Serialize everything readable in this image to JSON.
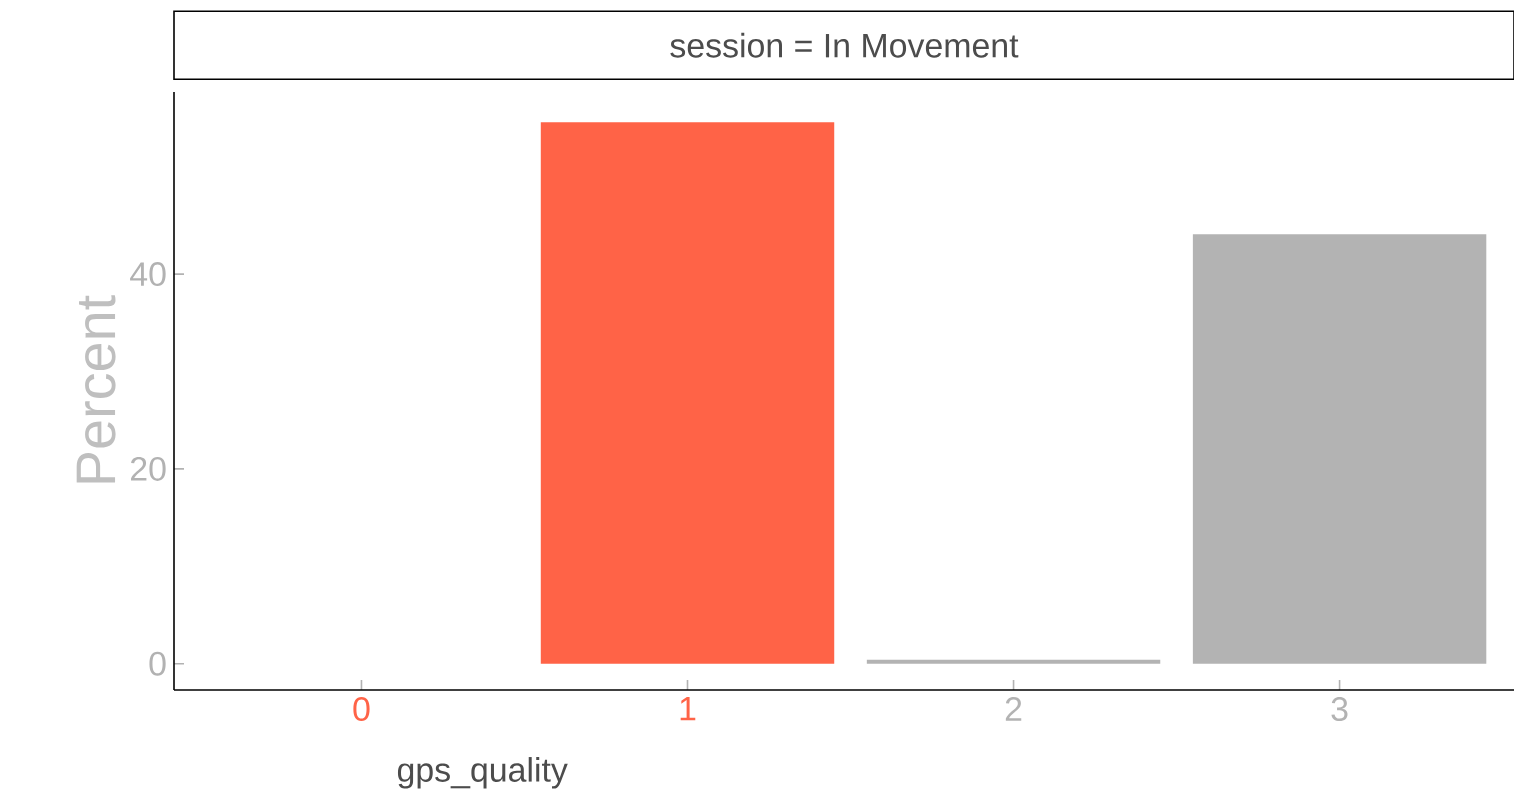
{
  "chart_data": {
    "type": "bar",
    "title": "session = In Movement",
    "xlabel": "gps_quality",
    "ylabel": "Percent",
    "categories": [
      "0",
      "1",
      "2",
      "3"
    ],
    "values": [
      0,
      55.6,
      0.4,
      44.1
    ],
    "colors": [
      "#ff6347",
      "#ff6347",
      "#b3b3b3",
      "#b3b3b3"
    ],
    "ylim": [
      -2.7,
      58.7
    ],
    "yticks": [
      0,
      20,
      40
    ]
  }
}
